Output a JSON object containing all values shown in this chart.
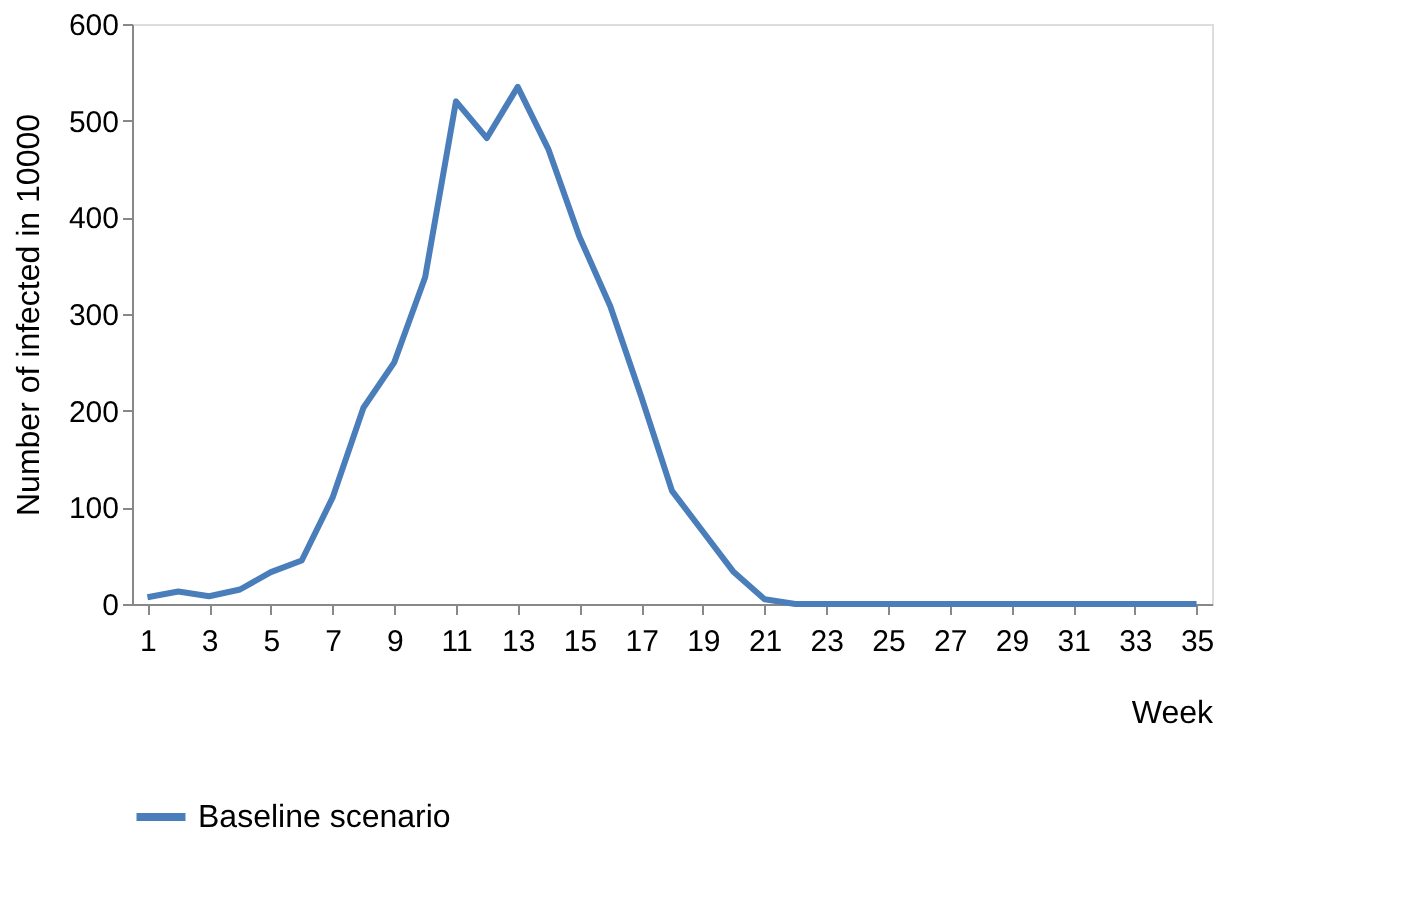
{
  "chart_data": {
    "type": "line",
    "xlabel": "Week",
    "ylabel": "Number  of infected in 10000",
    "x": [
      1,
      2,
      3,
      4,
      5,
      6,
      7,
      8,
      9,
      10,
      11,
      12,
      13,
      14,
      15,
      16,
      17,
      18,
      19,
      20,
      21,
      22,
      23,
      24,
      25,
      26,
      27,
      28,
      29,
      30,
      31,
      32,
      33,
      34,
      35
    ],
    "series": [
      {
        "name": "Baseline scenario",
        "color": "#4a7ebb",
        "values": [
          7,
          13,
          8,
          15,
          33,
          45,
          110,
          203,
          250,
          338,
          520,
          482,
          535,
          470,
          380,
          308,
          215,
          117,
          75,
          33,
          5,
          0,
          0,
          0,
          0,
          0,
          0,
          0,
          0,
          0,
          0,
          0,
          0,
          0,
          0
        ]
      }
    ],
    "xlim": [
      0.5,
      35.5
    ],
    "xticks": [
      1,
      3,
      5,
      7,
      9,
      11,
      13,
      15,
      17,
      19,
      21,
      23,
      25,
      27,
      29,
      31,
      33,
      35
    ],
    "ylim": [
      0,
      600
    ],
    "yticks": [
      0,
      100,
      200,
      300,
      400,
      500,
      600
    ],
    "grid": false,
    "legend": "bottom",
    "marker": "none",
    "line_style": "solid"
  }
}
